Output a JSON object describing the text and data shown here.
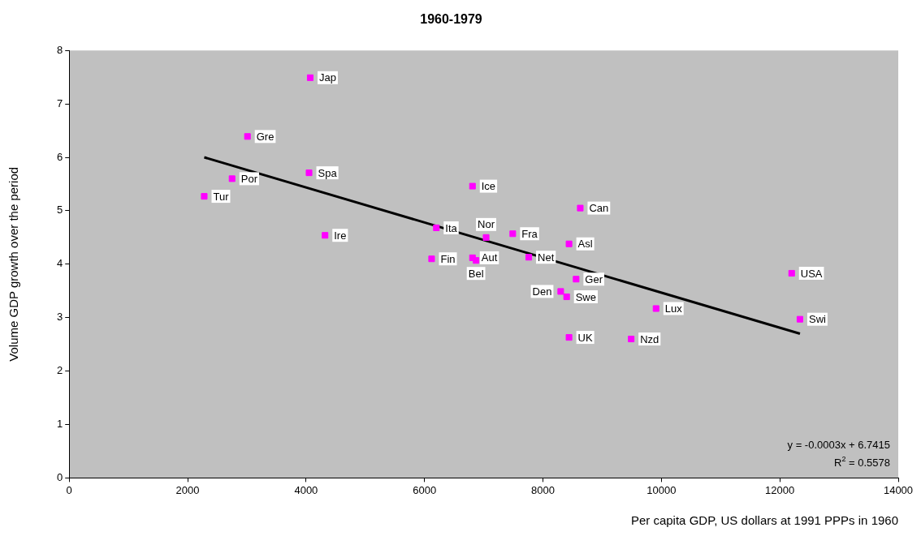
{
  "chart_data": {
    "type": "scatter",
    "title": "1960-1979",
    "xlabel": "Per capita GDP, US dollars at 1991 PPPs in 1960",
    "ylabel": "Volume GDP growth over the period",
    "xlim": [
      0,
      14000
    ],
    "xticks": [
      0,
      2000,
      4000,
      6000,
      8000,
      10000,
      12000,
      14000
    ],
    "ylim": [
      0,
      8
    ],
    "yticks": [
      0,
      1,
      2,
      3,
      4,
      5,
      6,
      7,
      8
    ],
    "grid": false,
    "legend": false,
    "marker": "square",
    "series": [
      {
        "color": "#ff00ff",
        "x": [
          4070,
          3010,
          4050,
          2750,
          2280,
          4320,
          6810,
          6200,
          7040,
          7490,
          8630,
          8440,
          7760,
          6120,
          6810,
          6870,
          8560,
          8300,
          8400,
          8440,
          9490,
          9910,
          12200,
          12340
        ],
        "values": [
          7.49,
          6.39,
          5.71,
          5.6,
          5.27,
          4.54,
          5.46,
          4.68,
          4.5,
          4.57,
          5.05,
          4.38,
          4.13,
          4.1,
          4.12,
          4.07,
          3.72,
          3.49,
          3.39,
          2.63,
          2.6,
          3.17,
          3.83,
          2.97
        ]
      },
      {
        "type": "line",
        "color": "#000000",
        "marker": "none",
        "line_style": "solid",
        "x": [
          2280,
          12340
        ],
        "values": [
          6.0,
          2.7
        ]
      }
    ],
    "annotations": [
      {
        "text": "Jap",
        "x": 4070,
        "y": 7.49
      },
      {
        "text": "Gre",
        "x": 3010,
        "y": 6.39
      },
      {
        "text": "Spa",
        "x": 4050,
        "y": 5.71
      },
      {
        "text": "Por",
        "x": 2750,
        "y": 5.6
      },
      {
        "text": "Tur",
        "x": 2280,
        "y": 5.27
      },
      {
        "text": "Ire",
        "x": 4320,
        "y": 4.54
      },
      {
        "text": "Ice",
        "x": 6810,
        "y": 5.46
      },
      {
        "text": "Ita",
        "x": 6200,
        "y": 4.68
      },
      {
        "text": "Nor",
        "x": 7040,
        "y": 4.5
      },
      {
        "text": "Fra",
        "x": 7490,
        "y": 4.57
      },
      {
        "text": "Can",
        "x": 8630,
        "y": 5.05
      },
      {
        "text": "Asl",
        "x": 8440,
        "y": 4.38
      },
      {
        "text": "Net",
        "x": 7760,
        "y": 4.13
      },
      {
        "text": "Fin",
        "x": 6120,
        "y": 4.1
      },
      {
        "text": "Aut",
        "x": 6810,
        "y": 4.12
      },
      {
        "text": "Bel",
        "x": 6870,
        "y": 4.07
      },
      {
        "text": "Ger",
        "x": 8560,
        "y": 3.72
      },
      {
        "text": "Den",
        "x": 8300,
        "y": 3.49
      },
      {
        "text": "Swe",
        "x": 8400,
        "y": 3.39
      },
      {
        "text": "UK",
        "x": 8440,
        "y": 2.63
      },
      {
        "text": "Nzd",
        "x": 9490,
        "y": 2.6
      },
      {
        "text": "Lux",
        "x": 9910,
        "y": 3.17
      },
      {
        "text": "USA",
        "x": 12200,
        "y": 3.83
      },
      {
        "text": "Swi",
        "x": 12340,
        "y": 2.97
      },
      "y = -0.0003x + 6.7415",
      "R$^{2}$ = 0.5578"
    ]
  }
}
